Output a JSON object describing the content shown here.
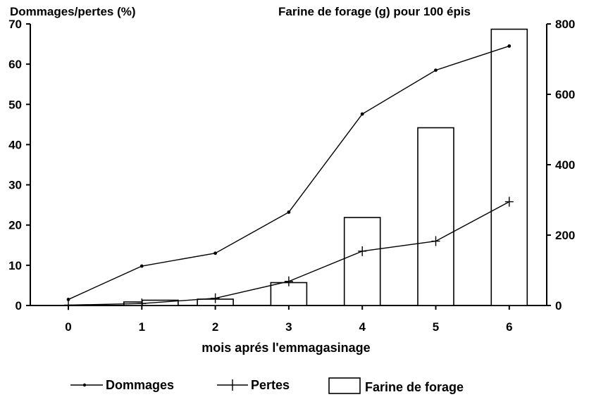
{
  "chart_data": {
    "type": "bar",
    "left_axis_title": "Dommages/pertes (%)",
    "right_axis_title": "Farine de forage (g) pour 100 épis",
    "xlabel": "mois aprés l'emmagasinage",
    "categories": [
      "0",
      "1",
      "2",
      "3",
      "4",
      "5",
      "6"
    ],
    "left_ylim": [
      0,
      70
    ],
    "left_ticks": [
      "0",
      "10",
      "20",
      "30",
      "40",
      "50",
      "60",
      "70"
    ],
    "right_ylim": [
      0,
      800
    ],
    "right_ticks": [
      "0",
      "200",
      "400",
      "600",
      "800"
    ],
    "grid": false,
    "legend_position": "bottom",
    "series": [
      {
        "name": "Farine de forage",
        "type": "bar",
        "axis": "right",
        "x": [
          1,
          1.25,
          2,
          3,
          4,
          5,
          6
        ],
        "values": [
          10,
          15,
          18,
          65,
          250,
          505,
          785
        ]
      },
      {
        "name": "Dommages",
        "type": "line",
        "axis": "left",
        "marker": "dot",
        "x": [
          0,
          1,
          2,
          3,
          4,
          5,
          6
        ],
        "values": [
          1.5,
          9.8,
          13,
          23.2,
          47.6,
          58.5,
          64.5
        ]
      },
      {
        "name": "Pertes",
        "type": "line",
        "axis": "left",
        "marker": "plus",
        "x": [
          0,
          1,
          2,
          3,
          4,
          5,
          6
        ],
        "values": [
          0.1,
          0.5,
          1.8,
          6,
          13.5,
          16,
          25.8
        ]
      }
    ]
  },
  "legend": {
    "dommages": "Dommages",
    "pertes": "Pertes",
    "farine": "Farine de forage"
  }
}
